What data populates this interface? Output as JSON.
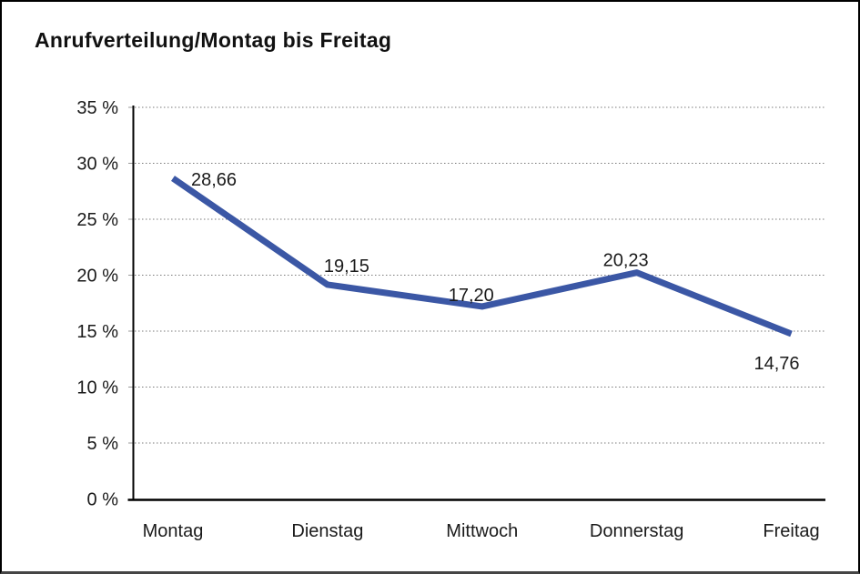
{
  "chart_data": {
    "type": "line",
    "title": "Anrufverteilung/Montag bis Freitag",
    "categories": [
      "Montag",
      "Dienstag",
      "Mittwoch",
      "Donnerstag",
      "Freitag"
    ],
    "values": [
      28.66,
      19.15,
      17.2,
      20.23,
      14.76
    ],
    "value_labels": [
      "28,66",
      "19,15",
      "17,20",
      "20,23",
      "14,76"
    ],
    "y_ticks": [
      "35 %",
      "30 %",
      "25 %",
      "20 %",
      "15 %",
      "10 %",
      "5 %",
      "0 %"
    ],
    "ylim": [
      0,
      35
    ],
    "y_tick_step": 5,
    "grid": "horizontal-dotted",
    "legend": "none",
    "line_color": "#3B57A5",
    "text_color": "#1a1a1a",
    "grid_color": "#7a7a7a",
    "axis_color": "#000000"
  }
}
